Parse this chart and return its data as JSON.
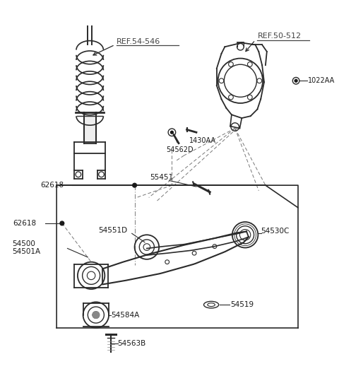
{
  "bg_color": "#ffffff",
  "line_color": "#2a2a2a",
  "text_color": "#1a1a1a",
  "ref_color": "#444444",
  "fig_width": 4.8,
  "fig_height": 5.32,
  "dpi": 100,
  "labels": {
    "ref1": "REF.54-546",
    "ref2": "REF.50-512",
    "p1022AA": "1022AA",
    "p1430AA": "1430AA",
    "p54562D": "54562D",
    "p55451": "55451",
    "p62618a": "62618",
    "p62618b": "62618",
    "p54551D": "54551D",
    "p54500": "54500",
    "p54501A": "54501A",
    "p54530C": "54530C",
    "p54519": "54519",
    "p54584A": "54584A",
    "p54563B": "54563B"
  }
}
